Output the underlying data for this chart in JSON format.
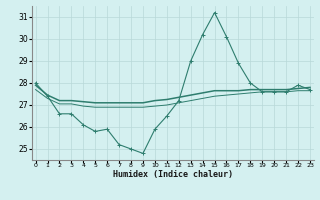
{
  "xlabel": "Humidex (Indice chaleur)",
  "x": [
    0,
    1,
    2,
    3,
    4,
    5,
    6,
    7,
    8,
    9,
    10,
    11,
    12,
    13,
    14,
    15,
    16,
    17,
    18,
    19,
    20,
    21,
    22,
    23
  ],
  "line1": [
    28.0,
    27.4,
    26.6,
    26.6,
    26.1,
    25.8,
    25.9,
    25.2,
    25.0,
    24.8,
    25.9,
    26.5,
    27.2,
    29.0,
    30.2,
    31.2,
    30.1,
    28.9,
    28.0,
    27.6,
    27.6,
    27.6,
    27.9,
    27.7
  ],
  "line2": [
    27.9,
    27.45,
    27.2,
    27.2,
    27.15,
    27.1,
    27.1,
    27.1,
    27.1,
    27.1,
    27.2,
    27.25,
    27.35,
    27.45,
    27.55,
    27.65,
    27.65,
    27.65,
    27.7,
    27.7,
    27.7,
    27.7,
    27.75,
    27.8
  ],
  "line3": [
    27.7,
    27.3,
    27.05,
    27.05,
    26.95,
    26.9,
    26.9,
    26.9,
    26.9,
    26.9,
    26.95,
    27.0,
    27.1,
    27.2,
    27.3,
    27.4,
    27.45,
    27.5,
    27.55,
    27.6,
    27.6,
    27.6,
    27.65,
    27.65
  ],
  "ylim": [
    24.5,
    31.5
  ],
  "yticks": [
    25,
    26,
    27,
    28,
    29,
    30,
    31
  ],
  "bg_color": "#d4f0f0",
  "line_color": "#2e7d6e",
  "grid_color": "#b8d8d8"
}
